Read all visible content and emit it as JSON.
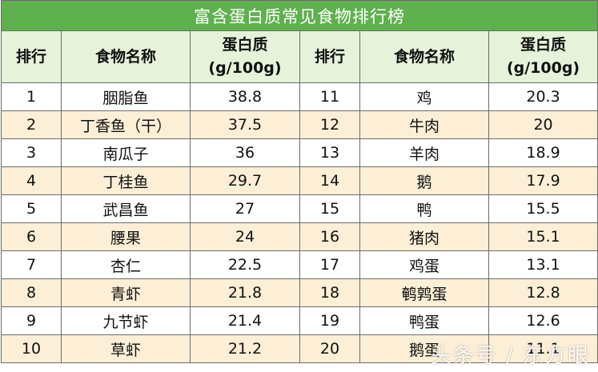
{
  "title": "富含蛋白质常见食物排行榜",
  "headers": {
    "rank": "排行",
    "food": "食物名称",
    "protein_line1": "蛋白质",
    "protein_line2": "(g/100g)"
  },
  "rows": [
    {
      "left": {
        "rank": "1",
        "food": "胭脂鱼",
        "protein": "38.8"
      },
      "right": {
        "rank": "11",
        "food": "鸡",
        "protein": "20.3"
      }
    },
    {
      "left": {
        "rank": "2",
        "food": "丁香鱼（干）",
        "protein": "37.5"
      },
      "right": {
        "rank": "12",
        "food": "牛肉",
        "protein": "20"
      }
    },
    {
      "left": {
        "rank": "3",
        "food": "南瓜子",
        "protein": "36"
      },
      "right": {
        "rank": "13",
        "food": "羊肉",
        "protein": "18.9"
      }
    },
    {
      "left": {
        "rank": "4",
        "food": "丁桂鱼",
        "protein": "29.7"
      },
      "right": {
        "rank": "14",
        "food": "鹅",
        "protein": "17.9"
      }
    },
    {
      "left": {
        "rank": "5",
        "food": "武昌鱼",
        "protein": "27"
      },
      "right": {
        "rank": "15",
        "food": "鸭",
        "protein": "15.5"
      }
    },
    {
      "left": {
        "rank": "6",
        "food": "腰果",
        "protein": "24"
      },
      "right": {
        "rank": "16",
        "food": "猪肉",
        "protein": "15.1"
      }
    },
    {
      "left": {
        "rank": "7",
        "food": "杏仁",
        "protein": "22.5"
      },
      "right": {
        "rank": "17",
        "food": "鸡蛋",
        "protein": "13.1"
      }
    },
    {
      "left": {
        "rank": "8",
        "food": "青虾",
        "protein": "21.8"
      },
      "right": {
        "rank": "18",
        "food": "鹌鹑蛋",
        "protein": "12.8"
      }
    },
    {
      "left": {
        "rank": "9",
        "food": "九节虾",
        "protein": "21.4"
      },
      "right": {
        "rank": "19",
        "food": "鸭蛋",
        "protein": "12.6"
      }
    },
    {
      "left": {
        "rank": "10",
        "food": "草虾",
        "protein": "21.2"
      },
      "right": {
        "rank": "20",
        "food": "鹅蛋",
        "protein": "11.1"
      }
    }
  ],
  "watermark": "头条号 / 东方眼",
  "colors": {
    "title_bg": "#5fb04f",
    "header_bg": "#e6f2d9",
    "alt_row_bg": "#fcefd6"
  }
}
